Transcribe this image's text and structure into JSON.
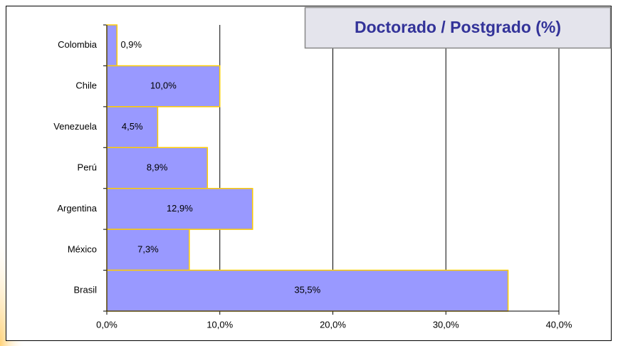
{
  "chart_data": {
    "type": "bar",
    "orientation": "horizontal",
    "title": "Doctorado / Postgrado (%)",
    "categories": [
      "Colombia",
      "Chile",
      "Venezuela",
      "Perú",
      "Argentina",
      "México",
      "Brasil"
    ],
    "values": [
      0.9,
      10.0,
      4.5,
      8.9,
      12.9,
      7.3,
      35.5
    ],
    "value_labels": [
      "0,9%",
      "10,0%",
      "4,5%",
      "8,9%",
      "12,9%",
      "7,3%",
      "35,5%"
    ],
    "color": "#9999ff",
    "edge_color": "#ffcc00",
    "xlim": [
      0,
      40
    ],
    "xticks": [
      {
        "value": 0,
        "label": "0,0%"
      },
      {
        "value": 10,
        "label": "10,0%"
      },
      {
        "value": 20,
        "label": "20,0%"
      },
      {
        "value": 30,
        "label": "30,0%"
      },
      {
        "value": 40,
        "label": "40,0%"
      }
    ],
    "grid": true
  }
}
